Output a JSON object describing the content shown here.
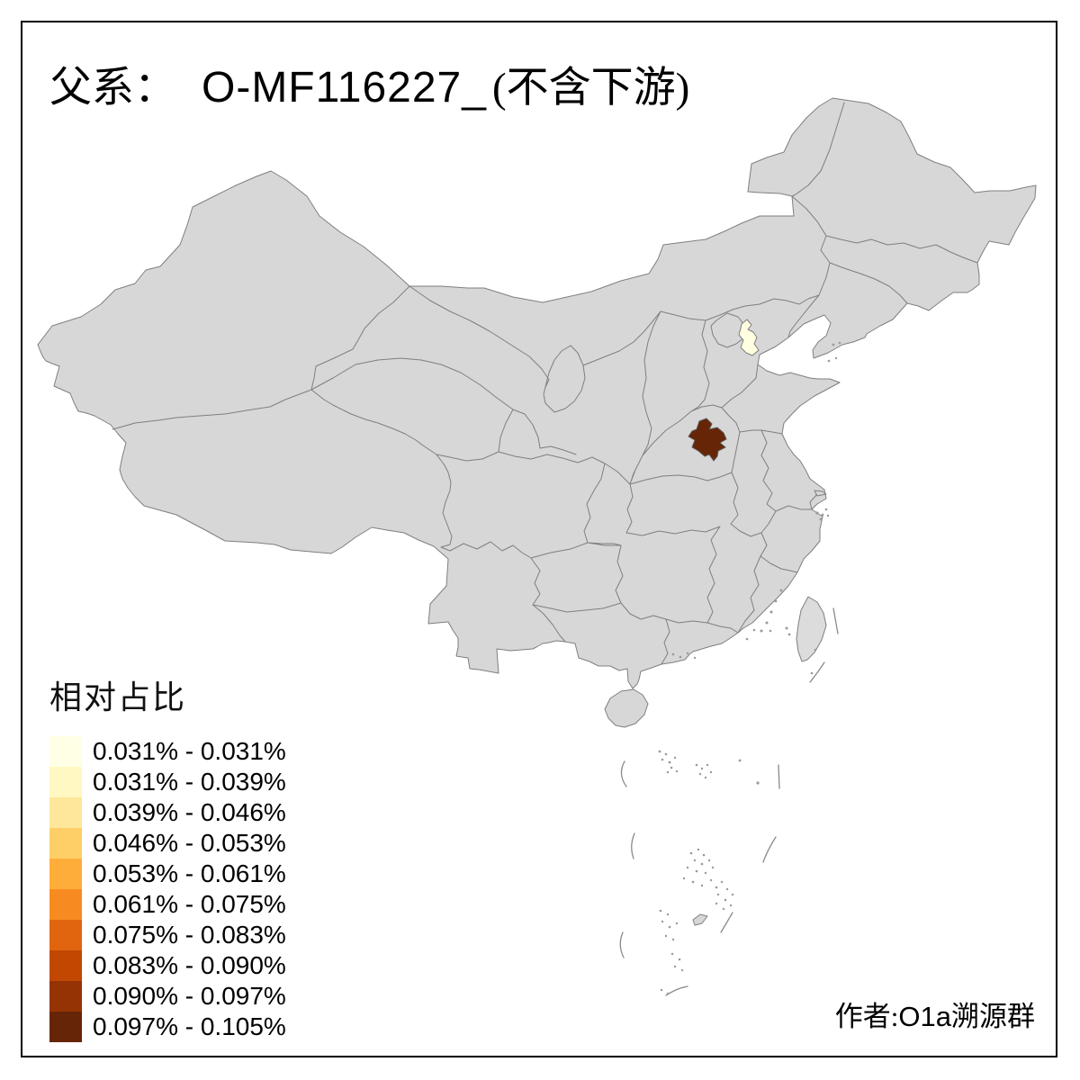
{
  "title": {
    "prefix_zh": "父系：",
    "haplogroup": "O-MF116227_",
    "suffix_zh": "(不含下游)"
  },
  "legend": {
    "title": "相对占比",
    "items": [
      {
        "label": "0.031% - 0.031%",
        "color": "#FFFFE5"
      },
      {
        "label": "0.031% - 0.039%",
        "color": "#FFF8C2"
      },
      {
        "label": "0.039% - 0.046%",
        "color": "#FEE79B"
      },
      {
        "label": "0.046% - 0.053%",
        "color": "#FECF66"
      },
      {
        "label": "0.053% - 0.061%",
        "color": "#FEAD3B"
      },
      {
        "label": "0.061% - 0.075%",
        "color": "#F78B22"
      },
      {
        "label": "0.075% - 0.083%",
        "color": "#E1650E"
      },
      {
        "label": "0.083% - 0.090%",
        "color": "#C24802"
      },
      {
        "label": "0.090% - 0.097%",
        "color": "#953304"
      },
      {
        "label": "0.097% - 0.105%",
        "color": "#662506"
      }
    ]
  },
  "attribution": {
    "prefix": "作者:",
    "latin": "O1a",
    "suffix": "溯源群"
  },
  "map": {
    "background": "#FFFFFF",
    "region_default_color": "#D7D7D7",
    "border_color": "#7F7F7F",
    "taiwan_color": "#DCDCDC",
    "frame_color": "#000000",
    "highlights": [
      {
        "name": "Tianjin",
        "color": "#FFFEE0",
        "legend_class": "0.031% - 0.031%"
      },
      {
        "name": "Henan prefecture",
        "color": "#662506",
        "legend_class": "0.097% - 0.105%"
      }
    ]
  }
}
